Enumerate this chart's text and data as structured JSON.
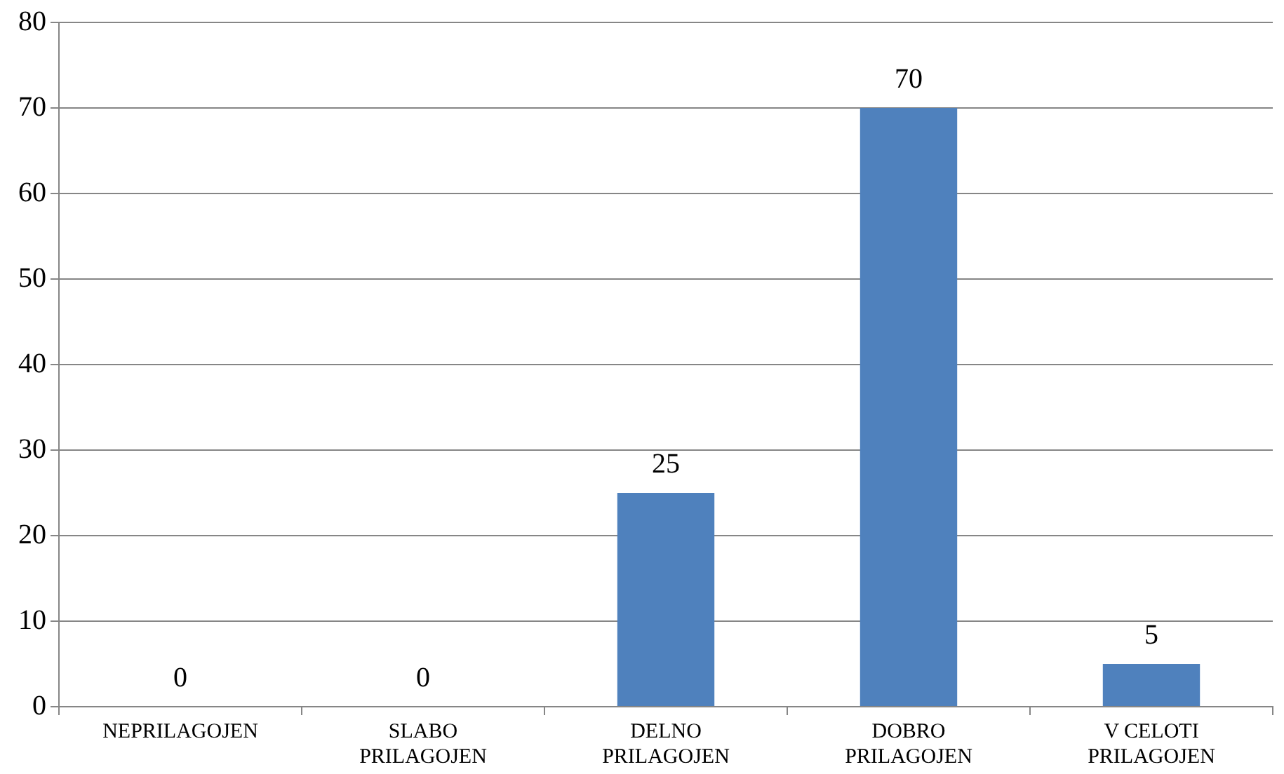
{
  "chart_data": {
    "type": "bar",
    "categories": [
      "NEPRILAGOJEN",
      "SLABO PRILAGOJEN",
      "DELNO PRILAGOJEN",
      "DOBRO PRILAGOJEN",
      "V CELOTI PRILAGOJEN"
    ],
    "values": [
      0,
      0,
      25,
      70,
      5
    ],
    "color": "#4f81bd",
    "ylim": [
      0,
      80
    ],
    "yticks": [
      0,
      10,
      20,
      30,
      40,
      50,
      60,
      70,
      80
    ],
    "grid": "y",
    "legend": false,
    "data_labels": true
  }
}
